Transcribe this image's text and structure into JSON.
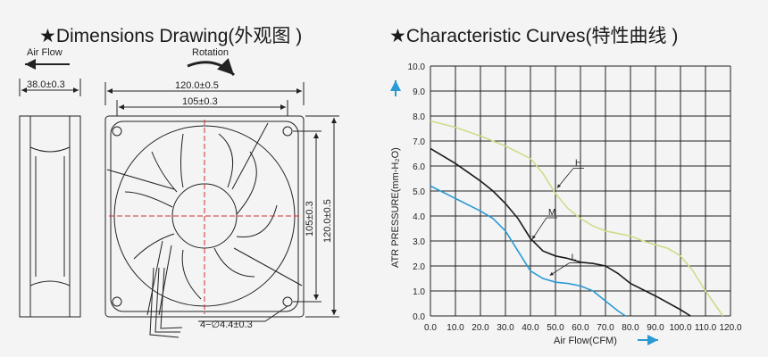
{
  "titles": {
    "dimensions": "★Dimensions Drawing(外观图 )",
    "curves": "★Characteristic Curves(特性曲线 )"
  },
  "drawing": {
    "air_flow": "Air Flow",
    "rotation": "Rotation",
    "depth": "38.0±0.3",
    "frame_width": "120.0±0.5",
    "hole_spacing_h": "105±0.3",
    "hole_spacing_v": "105±0.3",
    "frame_height": "120.0±0.5",
    "hole_spec": "4−∅4.4±0.3"
  },
  "chart_data": {
    "type": "line",
    "xlabel": "Air Flow(CFM)",
    "ylabel": "ATR PRESSURE(mm-H₂O)",
    "xlim": [
      0,
      120
    ],
    "ylim": [
      0,
      10
    ],
    "x_ticks": [
      "0.0",
      "10.0",
      "20.0",
      "30.0",
      "40.0",
      "50.0",
      "60.0",
      "70.0",
      "80.0",
      "90.0",
      "100.0",
      "110.0",
      "120.0"
    ],
    "y_ticks": [
      "0.0",
      "1.0",
      "2.0",
      "3.0",
      "4.0",
      "5.0",
      "6.0",
      "7.0",
      "8.0",
      "9.0",
      "10.0"
    ],
    "grid": true,
    "series": [
      {
        "name": "H",
        "color": "#cfdc8a",
        "points": [
          [
            0,
            7.8
          ],
          [
            10,
            7.55
          ],
          [
            20,
            7.2
          ],
          [
            30,
            6.8
          ],
          [
            40,
            6.3
          ],
          [
            45,
            5.7
          ],
          [
            50,
            4.9
          ],
          [
            55,
            4.3
          ],
          [
            60,
            3.9
          ],
          [
            65,
            3.6
          ],
          [
            70,
            3.4
          ],
          [
            80,
            3.2
          ],
          [
            85,
            3.0
          ],
          [
            90,
            2.85
          ],
          [
            95,
            2.7
          ],
          [
            100,
            2.4
          ],
          [
            105,
            1.8
          ],
          [
            110,
            1.0
          ],
          [
            117,
            0.0
          ]
        ]
      },
      {
        "name": "M",
        "color": "#1a1a1a",
        "points": [
          [
            0,
            6.7
          ],
          [
            10,
            6.1
          ],
          [
            20,
            5.4
          ],
          [
            25,
            5.0
          ],
          [
            30,
            4.5
          ],
          [
            35,
            3.9
          ],
          [
            40,
            3.1
          ],
          [
            45,
            2.6
          ],
          [
            50,
            2.4
          ],
          [
            55,
            2.3
          ],
          [
            60,
            2.15
          ],
          [
            65,
            2.1
          ],
          [
            70,
            2.0
          ],
          [
            75,
            1.7
          ],
          [
            80,
            1.3
          ],
          [
            90,
            0.8
          ],
          [
            100,
            0.25
          ],
          [
            104,
            0.0
          ]
        ]
      },
      {
        "name": "L",
        "color": "#2a9ad4",
        "points": [
          [
            0,
            5.2
          ],
          [
            10,
            4.7
          ],
          [
            20,
            4.2
          ],
          [
            25,
            3.9
          ],
          [
            30,
            3.4
          ],
          [
            35,
            2.6
          ],
          [
            40,
            1.8
          ],
          [
            45,
            1.5
          ],
          [
            50,
            1.35
          ],
          [
            55,
            1.3
          ],
          [
            60,
            1.2
          ],
          [
            65,
            1.0
          ],
          [
            70,
            0.6
          ],
          [
            75,
            0.2
          ],
          [
            78,
            0.0
          ]
        ]
      }
    ]
  }
}
